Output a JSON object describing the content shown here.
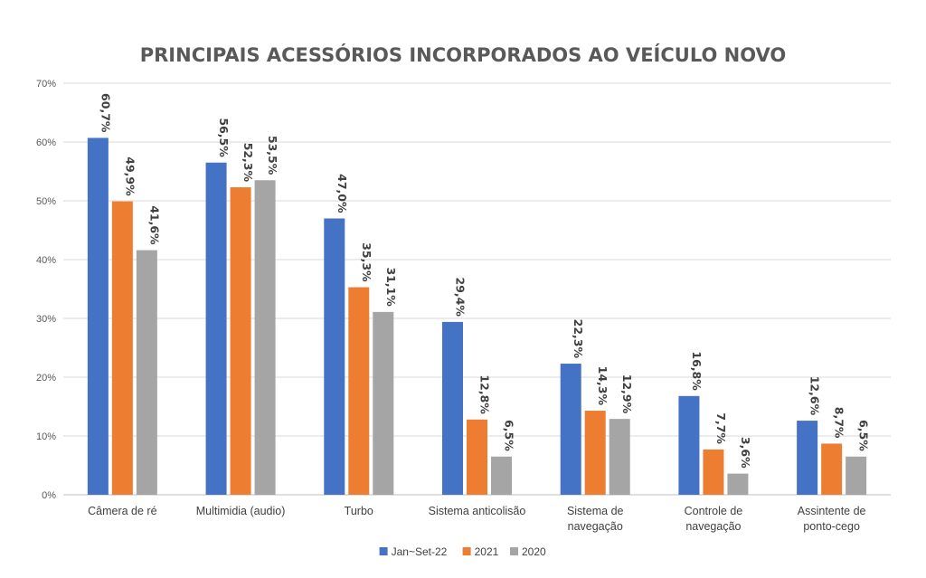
{
  "chart_data": {
    "type": "bar",
    "title": "PRINCIPAIS ACESSÓRIOS INCORPORADOS AO VEÍCULO NOVO",
    "xlabel": "",
    "ylabel": "",
    "categories": [
      [
        "Câmera de ré"
      ],
      [
        "Multimidia (audio)"
      ],
      [
        "Turbo"
      ],
      [
        "Sistema anticolisão"
      ],
      [
        "Sistema de",
        "navegação"
      ],
      [
        "Controle de",
        "navegação"
      ],
      [
        "Assintente de",
        "ponto-cego"
      ]
    ],
    "series": [
      {
        "name": "Jan~Set-22",
        "color": "#4472C4",
        "values": [
          60.7,
          56.5,
          47.0,
          29.4,
          22.3,
          16.8,
          12.6
        ],
        "labels": [
          "60,7%",
          "56,5%",
          "47,0%",
          "29,4%",
          "22,3%",
          "16,8%",
          "12,6%"
        ]
      },
      {
        "name": "2021",
        "color": "#ED7D31",
        "values": [
          49.9,
          52.3,
          35.3,
          12.8,
          14.3,
          7.7,
          8.7
        ],
        "labels": [
          "49,9%",
          "52,3%",
          "35,3%",
          "12,8%",
          "14,3%",
          "7,7%",
          "8,7%"
        ]
      },
      {
        "name": "2020",
        "color": "#A5A5A5",
        "values": [
          41.6,
          53.5,
          31.1,
          6.5,
          12.9,
          3.6,
          6.5
        ],
        "labels": [
          "41,6%",
          "53,5%",
          "31,1%",
          "6,5%",
          "12,9%",
          "3,6%",
          "6,5%"
        ]
      }
    ],
    "ylim": [
      0,
      70
    ],
    "yticks": [
      0,
      10,
      20,
      30,
      40,
      50,
      60,
      70
    ],
    "ytick_labels": [
      "0%",
      "10%",
      "20%",
      "30%",
      "40%",
      "50%",
      "60%",
      "70%"
    ],
    "grid": true,
    "legend_position": "bottom"
  }
}
